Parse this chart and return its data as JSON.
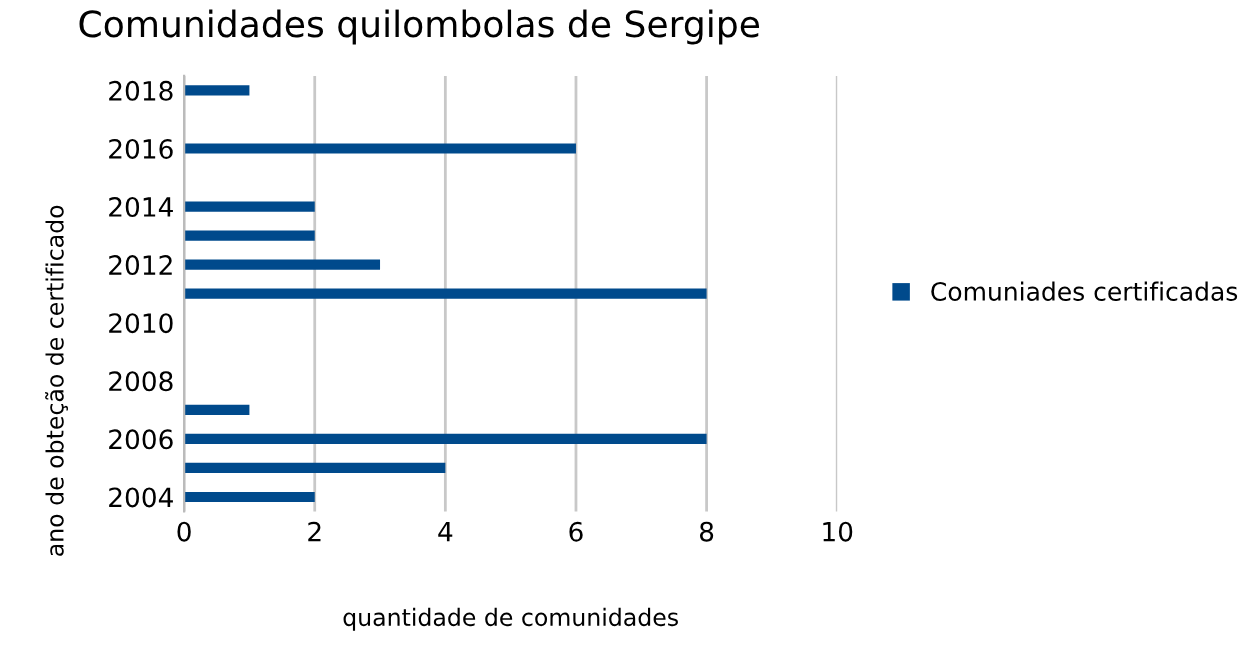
{
  "chart_data": {
    "type": "bar",
    "orientation": "horizontal",
    "title": "Comunidades quilombolas de Sergipe",
    "xlabel": "quantidade de comunidades",
    "ylabel": "ano de obteção de certificado",
    "categories": [
      "2018",
      null,
      "2016",
      null,
      "2014",
      null,
      "2012",
      null,
      "2010",
      null,
      "2008",
      null,
      "2006",
      null,
      "2004"
    ],
    "series": [
      {
        "name": "Comuniades certificadas",
        "color": "#004a8c",
        "values": [
          1,
          null,
          6,
          null,
          2,
          2,
          3,
          8,
          null,
          null,
          null,
          1,
          8,
          4,
          2
        ]
      }
    ],
    "xlim": [
      0,
      10
    ],
    "xticks": [
      0,
      2,
      4,
      6,
      8,
      10
    ],
    "grid": "x",
    "legend": "right"
  }
}
